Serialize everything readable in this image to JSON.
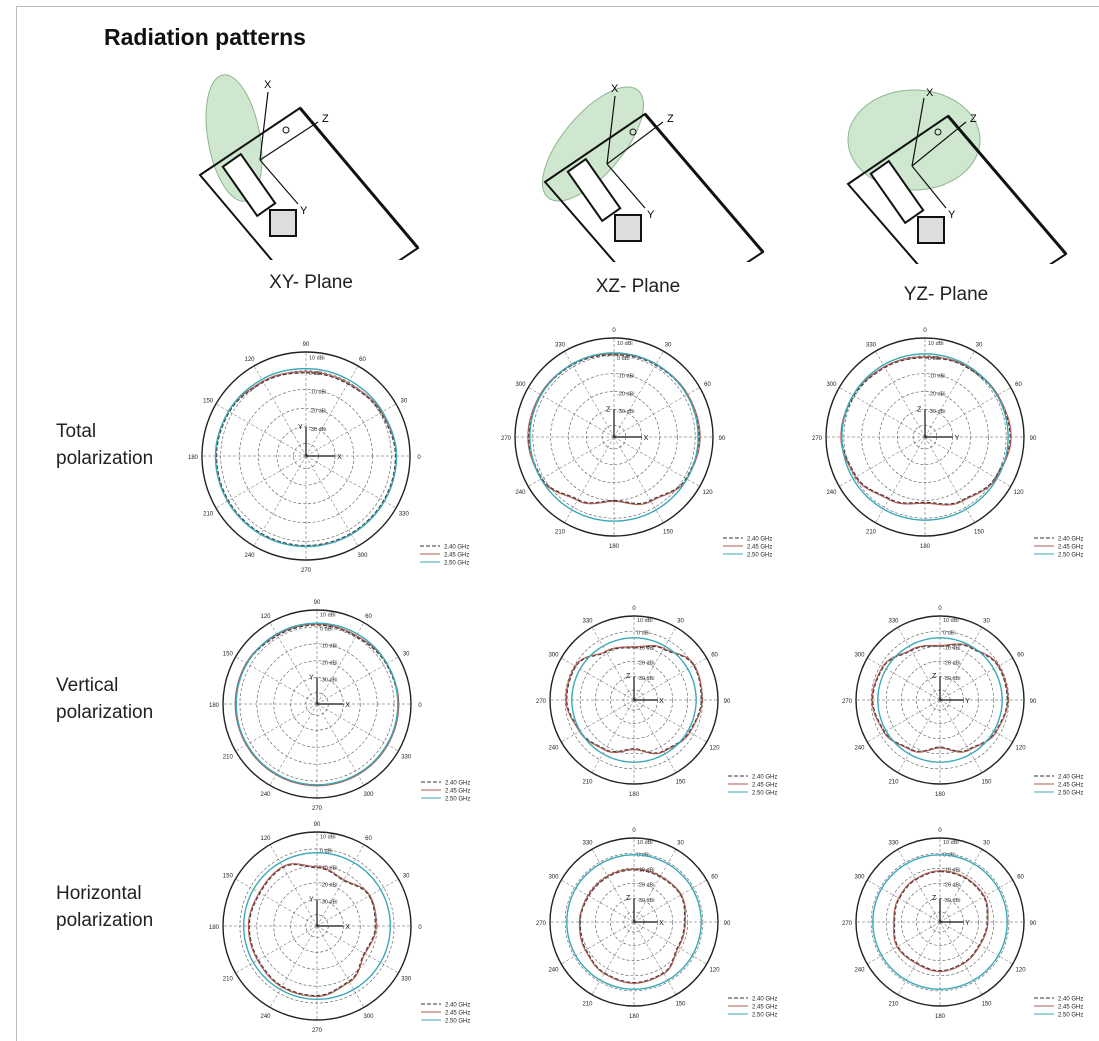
{
  "title": "Radiation patterns",
  "planes": [
    "XY- Plane",
    "XZ- Plane",
    "YZ- Plane"
  ],
  "rows": [
    {
      "line1": "Total",
      "line2": "polarization"
    },
    {
      "line1": "Vertical",
      "line2": "polarization"
    },
    {
      "line1": "Horizontal",
      "line2": "polarization"
    }
  ],
  "colors": {
    "series_a": "#333333",
    "series_b": "#b0584c",
    "series_c": "#3aa8b8",
    "ellipse": "#cfe6cf"
  },
  "sketch_labels": [
    "X",
    "Z",
    "Y"
  ],
  "chart_data": [
    {
      "type": "polar",
      "plane": "XY",
      "polarization": "Total",
      "angles": [
        "90",
        "60",
        "30",
        "0",
        "330",
        "300",
        "270",
        "240",
        "210",
        "180",
        "150",
        "120"
      ],
      "rings": [
        "10 dBi",
        "0 dBi",
        "-10 dBi",
        "-20 dBi",
        "-30 dBi"
      ],
      "axes": [
        "Y",
        "X"
      ],
      "series": [
        {
          "name": "2.40 GHz",
          "r": [
            0.8,
            0.8,
            0.83,
            0.86,
            0.86,
            0.86,
            0.86,
            0.86,
            0.86,
            0.86,
            0.85,
            0.82
          ]
        },
        {
          "name": "2.45 GHz",
          "r": [
            0.81,
            0.81,
            0.84,
            0.87,
            0.87,
            0.87,
            0.87,
            0.87,
            0.87,
            0.87,
            0.86,
            0.83
          ]
        },
        {
          "name": "2.50 GHz",
          "r": [
            0.84,
            0.84,
            0.85,
            0.87,
            0.87,
            0.87,
            0.87,
            0.87,
            0.87,
            0.87,
            0.86,
            0.85
          ]
        }
      ]
    },
    {
      "type": "polar",
      "plane": "XZ",
      "polarization": "Total",
      "angles": [
        "0",
        "30",
        "60",
        "90",
        "120",
        "150",
        "180",
        "210",
        "240",
        "270",
        "300",
        "330"
      ],
      "rings": [
        "10 dBi",
        "0 dBi",
        "-10 dBi",
        "-20 dBi",
        "-30 dBi"
      ],
      "axes": [
        "Z",
        "X"
      ],
      "series": [
        {
          "name": "2.40 GHz",
          "r": [
            0.83,
            0.84,
            0.85,
            0.86,
            0.84,
            0.74,
            0.64,
            0.73,
            0.84,
            0.86,
            0.85,
            0.84
          ]
        },
        {
          "name": "2.45 GHz",
          "r": [
            0.84,
            0.85,
            0.86,
            0.87,
            0.85,
            0.75,
            0.65,
            0.74,
            0.85,
            0.87,
            0.86,
            0.85
          ]
        },
        {
          "name": "2.50 GHz",
          "r": [
            0.85,
            0.85,
            0.85,
            0.85,
            0.85,
            0.85,
            0.85,
            0.85,
            0.85,
            0.85,
            0.85,
            0.85
          ]
        }
      ]
    },
    {
      "type": "polar",
      "plane": "YZ",
      "polarization": "Total",
      "angles": [
        "0",
        "30",
        "60",
        "90",
        "120",
        "150",
        "180",
        "210",
        "240",
        "270",
        "300",
        "330"
      ],
      "rings": [
        "10 dBi",
        "0 dBi",
        "-10 dBi",
        "-20 dBi",
        "-30 dBi"
      ],
      "axes": [
        "Z",
        "Y"
      ],
      "series": [
        {
          "name": "2.40 GHz",
          "r": [
            0.8,
            0.82,
            0.84,
            0.86,
            0.82,
            0.74,
            0.66,
            0.72,
            0.8,
            0.84,
            0.83,
            0.81
          ]
        },
        {
          "name": "2.45 GHz",
          "r": [
            0.81,
            0.83,
            0.85,
            0.87,
            0.83,
            0.75,
            0.67,
            0.73,
            0.81,
            0.85,
            0.84,
            0.82
          ]
        },
        {
          "name": "2.50 GHz",
          "r": [
            0.84,
            0.84,
            0.84,
            0.84,
            0.84,
            0.84,
            0.84,
            0.84,
            0.84,
            0.84,
            0.84,
            0.84
          ]
        }
      ]
    },
    {
      "type": "polar",
      "plane": "XY",
      "polarization": "Vertical",
      "angles": [
        "90",
        "60",
        "30",
        "0",
        "330",
        "300",
        "270",
        "240",
        "210",
        "180",
        "150",
        "120"
      ],
      "rings": [
        "10 dBi",
        "0 dBi",
        "-10 dBi",
        "-20 dBi",
        "-30 dBi"
      ],
      "axes": [
        "Y",
        "X"
      ],
      "series": [
        {
          "name": "2.40 GHz",
          "r": [
            0.84,
            0.83,
            0.85,
            0.86,
            0.86,
            0.86,
            0.86,
            0.86,
            0.86,
            0.86,
            0.86,
            0.84
          ]
        },
        {
          "name": "2.45 GHz",
          "r": [
            0.85,
            0.84,
            0.86,
            0.87,
            0.87,
            0.87,
            0.87,
            0.87,
            0.87,
            0.87,
            0.87,
            0.85
          ]
        },
        {
          "name": "2.50 GHz",
          "r": [
            0.86,
            0.86,
            0.86,
            0.86,
            0.86,
            0.86,
            0.86,
            0.86,
            0.86,
            0.86,
            0.86,
            0.86
          ]
        }
      ]
    },
    {
      "type": "polar",
      "plane": "XZ",
      "polarization": "Vertical",
      "angles": [
        "0",
        "30",
        "60",
        "90",
        "120",
        "150",
        "180",
        "210",
        "240",
        "270",
        "300",
        "330"
      ],
      "rings": [
        "10 dBi",
        "0 dBi",
        "-10 dBi",
        "-20 dBi",
        "-30 dBi"
      ],
      "axes": [
        "Z",
        "X"
      ],
      "series": [
        {
          "name": "2.40 GHz",
          "r": [
            0.62,
            0.7,
            0.82,
            0.8,
            0.76,
            0.7,
            0.58,
            0.68,
            0.74,
            0.8,
            0.8,
            0.66
          ]
        },
        {
          "name": "2.45 GHz",
          "r": [
            0.63,
            0.71,
            0.83,
            0.81,
            0.77,
            0.71,
            0.59,
            0.69,
            0.75,
            0.81,
            0.81,
            0.67
          ]
        },
        {
          "name": "2.50 GHz",
          "r": [
            0.74,
            0.74,
            0.74,
            0.74,
            0.74,
            0.74,
            0.74,
            0.74,
            0.74,
            0.74,
            0.74,
            0.74
          ]
        }
      ]
    },
    {
      "type": "polar",
      "plane": "YZ",
      "polarization": "Vertical",
      "angles": [
        "0",
        "30",
        "60",
        "90",
        "120",
        "150",
        "180",
        "210",
        "240",
        "270",
        "300",
        "330"
      ],
      "rings": [
        "10 dBi",
        "0 dBi",
        "-10 dBi",
        "-20 dBi",
        "-30 dBi"
      ],
      "axes": [
        "Z",
        "Y"
      ],
      "series": [
        {
          "name": "2.40 GHz",
          "r": [
            0.64,
            0.72,
            0.8,
            0.8,
            0.76,
            0.68,
            0.56,
            0.68,
            0.76,
            0.8,
            0.78,
            0.68
          ]
        },
        {
          "name": "2.45 GHz",
          "r": [
            0.65,
            0.73,
            0.81,
            0.81,
            0.77,
            0.69,
            0.57,
            0.69,
            0.77,
            0.81,
            0.79,
            0.69
          ]
        },
        {
          "name": "2.50 GHz",
          "r": [
            0.74,
            0.74,
            0.74,
            0.74,
            0.74,
            0.74,
            0.74,
            0.74,
            0.74,
            0.74,
            0.74,
            0.74
          ]
        }
      ]
    },
    {
      "type": "polar",
      "plane": "XY",
      "polarization": "Horizontal",
      "angles": [
        "90",
        "60",
        "30",
        "0",
        "330",
        "300",
        "270",
        "240",
        "210",
        "180",
        "150",
        "120"
      ],
      "rings": [
        "10 dBi",
        "0 dBi",
        "-10 dBi",
        "-20 dBi",
        "-30 dBi"
      ],
      "axes": [
        "Y",
        "X"
      ],
      "series": [
        {
          "name": "2.40 GHz",
          "r": [
            0.62,
            0.56,
            0.64,
            0.62,
            0.58,
            0.68,
            0.74,
            0.74,
            0.72,
            0.72,
            0.7,
            0.72
          ]
        },
        {
          "name": "2.45 GHz",
          "r": [
            0.63,
            0.57,
            0.65,
            0.63,
            0.59,
            0.69,
            0.75,
            0.75,
            0.73,
            0.73,
            0.71,
            0.73
          ]
        },
        {
          "name": "2.50 GHz",
          "r": [
            0.78,
            0.78,
            0.78,
            0.78,
            0.78,
            0.78,
            0.78,
            0.78,
            0.78,
            0.78,
            0.78,
            0.78
          ]
        }
      ]
    },
    {
      "type": "polar",
      "plane": "XZ",
      "polarization": "Horizontal",
      "angles": [
        "0",
        "30",
        "60",
        "90",
        "120",
        "150",
        "180",
        "210",
        "240",
        "270",
        "300",
        "330"
      ],
      "rings": [
        "10 dBi",
        "0 dBi",
        "-10 dBi",
        "-20 dBi",
        "-30 dBi"
      ],
      "axes": [
        "Z",
        "X"
      ],
      "series": [
        {
          "name": "2.40 GHz",
          "r": [
            0.62,
            0.62,
            0.64,
            0.6,
            0.6,
            0.7,
            0.72,
            0.7,
            0.66,
            0.64,
            0.62,
            0.62
          ]
        },
        {
          "name": "2.45 GHz",
          "r": [
            0.63,
            0.63,
            0.65,
            0.61,
            0.61,
            0.71,
            0.73,
            0.71,
            0.67,
            0.65,
            0.63,
            0.63
          ]
        },
        {
          "name": "2.50 GHz",
          "r": [
            0.8,
            0.8,
            0.8,
            0.8,
            0.8,
            0.8,
            0.8,
            0.8,
            0.8,
            0.8,
            0.8,
            0.8
          ]
        }
      ]
    },
    {
      "type": "polar",
      "plane": "YZ",
      "polarization": "Horizontal",
      "angles": [
        "0",
        "30",
        "60",
        "90",
        "120",
        "150",
        "180",
        "210",
        "240",
        "270",
        "300",
        "330"
      ],
      "rings": [
        "10 dBi",
        "0 dBi",
        "-10 dBi",
        "-20 dBi",
        "-30 dBi"
      ],
      "axes": [
        "Z",
        "Y"
      ],
      "series": [
        {
          "name": "2.40 GHz",
          "r": [
            0.6,
            0.6,
            0.6,
            0.56,
            0.54,
            0.56,
            0.58,
            0.56,
            0.58,
            0.54,
            0.56,
            0.58
          ]
        },
        {
          "name": "2.45 GHz",
          "r": [
            0.61,
            0.61,
            0.61,
            0.57,
            0.55,
            0.57,
            0.59,
            0.57,
            0.59,
            0.55,
            0.57,
            0.59
          ]
        },
        {
          "name": "2.50 GHz",
          "r": [
            0.8,
            0.8,
            0.8,
            0.8,
            0.8,
            0.8,
            0.8,
            0.8,
            0.8,
            0.8,
            0.8,
            0.8
          ]
        }
      ]
    }
  ]
}
